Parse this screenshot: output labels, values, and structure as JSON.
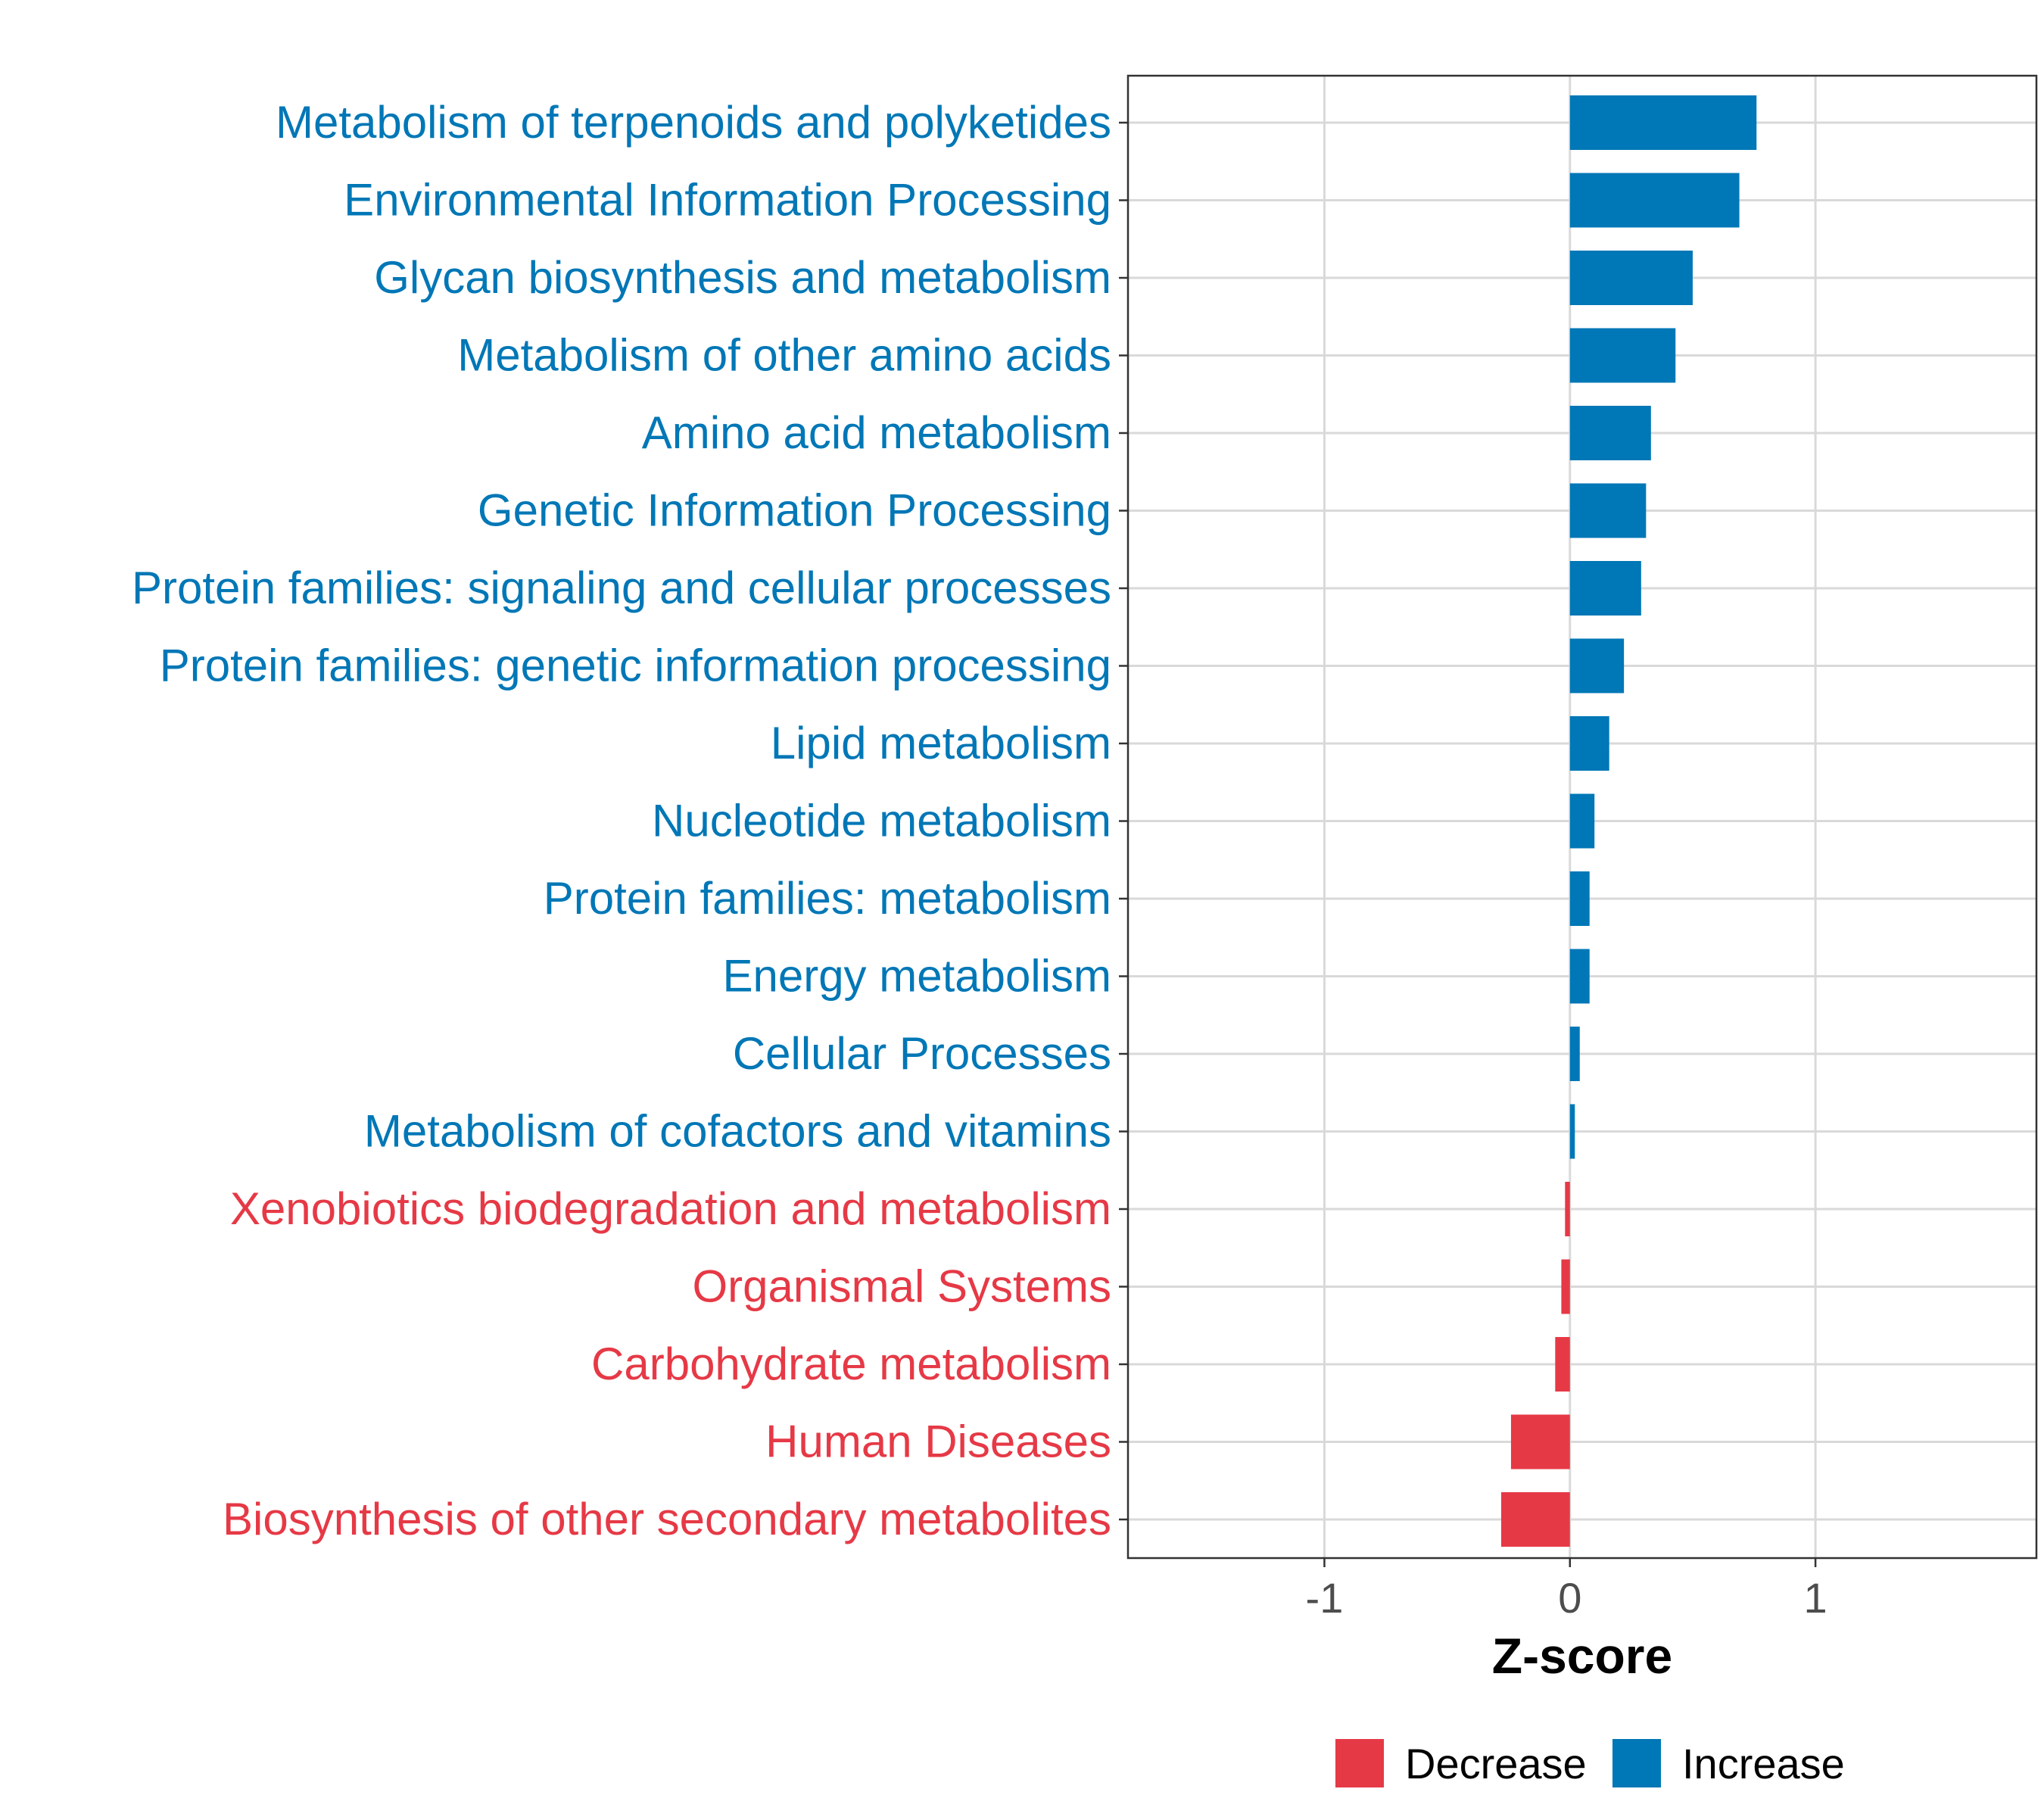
{
  "chart_data": {
    "type": "bar",
    "orientation": "horizontal",
    "xlabel": "Z-score",
    "ylabel": "",
    "xlim": [
      -1.8,
      1.9
    ],
    "xticks": [
      -1,
      0,
      1
    ],
    "xtick_labels": [
      "-1",
      "0",
      "1"
    ],
    "grid": true,
    "legend_position": "bottom",
    "colors": {
      "Decrease": "#e63946",
      "Increase": "#0077b6"
    },
    "legend": [
      {
        "label": "Decrease",
        "color": "#e63946"
      },
      {
        "label": "Increase",
        "color": "#0077b6"
      }
    ],
    "categories": [
      "Metabolism of terpenoids and polyketides",
      "Environmental Information Processing",
      "Glycan biosynthesis and metabolism",
      "Metabolism of other amino acids",
      "Amino acid metabolism",
      "Genetic Information Processing",
      "Protein families: signaling and cellular processes",
      "Protein families: genetic information processing",
      "Lipid metabolism",
      "Nucleotide metabolism",
      "Protein families: metabolism",
      "Energy metabolism",
      "Cellular Processes",
      "Metabolism of cofactors and vitamins",
      "Xenobiotics biodegradation and metabolism",
      "Organismal Systems",
      "Carbohydrate metabolism",
      "Human Diseases",
      "Biosynthesis of other secondary metabolites"
    ],
    "values": [
      0.76,
      0.69,
      0.5,
      0.43,
      0.33,
      0.31,
      0.29,
      0.22,
      0.16,
      0.1,
      0.08,
      0.08,
      0.04,
      0.02,
      -0.02,
      -0.035,
      -0.06,
      -0.24,
      -0.28
    ],
    "groups": [
      "Increase",
      "Increase",
      "Increase",
      "Increase",
      "Increase",
      "Increase",
      "Increase",
      "Increase",
      "Increase",
      "Increase",
      "Increase",
      "Increase",
      "Increase",
      "Increase",
      "Decrease",
      "Decrease",
      "Decrease",
      "Decrease",
      "Decrease"
    ]
  }
}
